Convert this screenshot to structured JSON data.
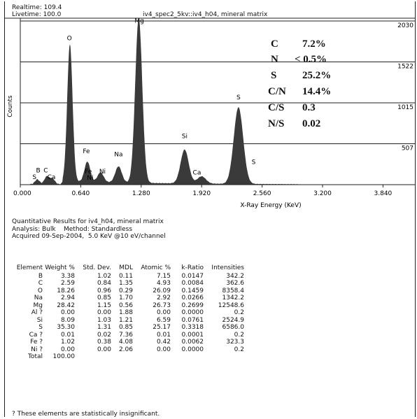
{
  "header": {
    "realtime": "Realtime: 109.4",
    "livetime": "Livetime: 100.0",
    "spectrum_name": "iv4_spec2_5kv::iv4_h04, mineral matrix"
  },
  "chart_data": {
    "type": "area",
    "title": "iv4_spec2_5kv::iv4_h04, mineral matrix",
    "xlabel": "X-Ray Energy (KeV)",
    "ylabel": "Counts",
    "xlim": [
      0.0,
      4.0
    ],
    "ylim": [
      0,
      2030
    ],
    "x_ticks": [
      "0.000",
      "0.640",
      "1.280",
      "1.920",
      "2.560",
      "3.200",
      "3.840"
    ],
    "y_ticks": [
      "2030",
      "1522",
      "1015",
      "507"
    ],
    "grid": "horizontal",
    "peaks": [
      {
        "energy": 0.18,
        "counts": 60
      },
      {
        "energy": 0.28,
        "counts": 95
      },
      {
        "energy": 0.34,
        "counts": 70
      },
      {
        "energy": 0.525,
        "counts": 1700
      },
      {
        "energy": 0.71,
        "counts": 250
      },
      {
        "energy": 0.85,
        "counts": 120
      },
      {
        "energy": 1.04,
        "counts": 200
      },
      {
        "energy": 1.254,
        "counts": 2050
      },
      {
        "energy": 1.74,
        "counts": 420
      },
      {
        "energy": 1.92,
        "counts": 90
      },
      {
        "energy": 2.31,
        "counts": 950
      }
    ],
    "peak_labels": [
      {
        "label": "S",
        "energy": 0.15,
        "counts": 70
      },
      {
        "label": "B",
        "energy": 0.19,
        "counts": 150
      },
      {
        "label": "C",
        "energy": 0.27,
        "counts": 150
      },
      {
        "label": "Ca",
        "energy": 0.33,
        "counts": 70
      },
      {
        "label": "O",
        "energy": 0.52,
        "counts": 1790
      },
      {
        "label": "Fe",
        "energy": 0.7,
        "counts": 390
      },
      {
        "label": "Fe",
        "energy": 0.72,
        "counts": 140
      },
      {
        "label": "Ni",
        "energy": 0.74,
        "counts": 60
      },
      {
        "label": "Ni",
        "energy": 0.87,
        "counts": 140
      },
      {
        "label": "Na",
        "energy": 1.04,
        "counts": 350
      },
      {
        "label": "Mg",
        "energy": 1.26,
        "counts": 2010
      },
      {
        "label": "Si",
        "energy": 1.74,
        "counts": 575
      },
      {
        "label": "Ca",
        "energy": 1.87,
        "counts": 125
      },
      {
        "label": "S",
        "energy": 2.31,
        "counts": 1060
      },
      {
        "label": "S",
        "energy": 2.47,
        "counts": 255
      }
    ],
    "overlay": [
      {
        "label": "C",
        "value": "7.2%"
      },
      {
        "label": "N",
        "value": "< 0.5%"
      },
      {
        "label": "S",
        "value": "25.2%"
      },
      {
        "label": "C/N",
        "value": "14.4%"
      },
      {
        "label": "C/S",
        "value": "0.3"
      },
      {
        "label": "N/S",
        "value": "0.02"
      }
    ],
    "fill_color": "#3a3a3a"
  },
  "results": {
    "line1": "Quantitative Results for iv4_h04, mineral matrix",
    "line2": "Analysis: Bulk    Method: Standardless",
    "line3": "Acquired 09-Sep-2004,  5.0 KeV @10 eV/channel"
  },
  "table": {
    "columns": [
      "Element",
      "Weight %",
      "Std. Dev.",
      "MDL",
      "Atomic %",
      "k-Ratio",
      "Intensities"
    ],
    "rows": [
      [
        "B",
        "3.38",
        "1.02",
        "0.11",
        "7.15",
        "0.0147",
        "342.2"
      ],
      [
        "C",
        "2.59",
        "0.84",
        "1.35",
        "4.93",
        "0.0084",
        "362.6"
      ],
      [
        "O",
        "18.26",
        "0.96",
        "0.29",
        "26.09",
        "0.1459",
        "8358.4"
      ],
      [
        "Na",
        "2.94",
        "0.85",
        "1.70",
        "2.92",
        "0.0266",
        "1342.2"
      ],
      [
        "Mg",
        "28.42",
        "1.15",
        "0.56",
        "26.73",
        "0.2699",
        "12548.6"
      ],
      [
        "Al ?",
        "0.00",
        "0.00",
        "1.88",
        "0.00",
        "0.0000",
        "0.2"
      ],
      [
        "Si",
        "8.09",
        "1.03",
        "1.21",
        "6.59",
        "0.0761",
        "2524.9"
      ],
      [
        "S",
        "35.30",
        "1.31",
        "0.85",
        "25.17",
        "0.3318",
        "6586.0"
      ],
      [
        "Ca ?",
        "0.01",
        "0.02",
        "7.36",
        "0.01",
        "0.0001",
        "0.2"
      ],
      [
        "Fe ?",
        "1.02",
        "0.38",
        "4.08",
        "0.42",
        "0.0062",
        "323.3"
      ],
      [
        "Ni ?",
        "0.00",
        "0.00",
        "2.06",
        "0.00",
        "0.0000",
        "0.2"
      ]
    ],
    "total_label": "Total",
    "total_value": "100.00"
  },
  "footnote": "? These elements are statistically insignificant."
}
